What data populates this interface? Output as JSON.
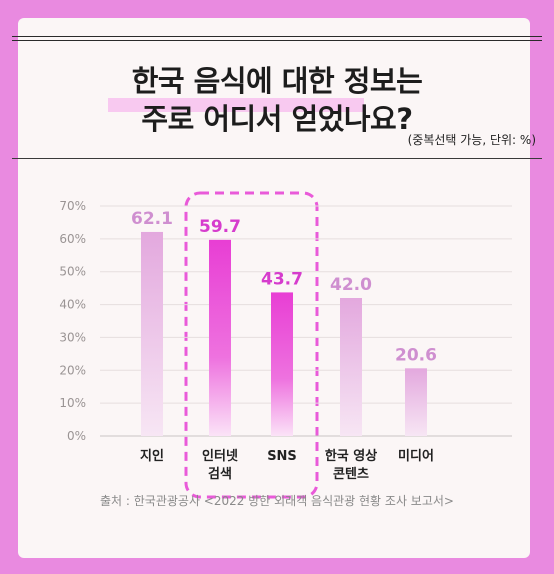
{
  "title_line1": "한국 음식에 대한 정보는",
  "title_line2": "주로 어디서 얻었나요?",
  "unit_note": "(중복선택 가능, 단위: %)",
  "source": "출처 : 한국관광공사 <2022 방한 외래객 음식관광 현황 조사 보고서>",
  "colors": {
    "background": "#e98ae0",
    "bar_light": "#e8b3e2",
    "bar_highlight": "#ea3fd5",
    "label_light": "#cf8fd0",
    "label_highlight": "#d63ccd",
    "dash": "#e95ad9"
  },
  "chart_data": {
    "type": "bar",
    "title": "한국 음식에 대한 정보는 주로 어디서 얻었나요?",
    "xlabel": "",
    "ylabel": "",
    "ylim": [
      0,
      70
    ],
    "yticks": [
      "0%",
      "10%",
      "20%",
      "30%",
      "40%",
      "50%",
      "60%",
      "70%"
    ],
    "categories": [
      [
        "지인"
      ],
      [
        "인터넷",
        "검색"
      ],
      [
        "SNS"
      ],
      [
        "한국 영상",
        "콘텐츠"
      ],
      [
        "미디어"
      ]
    ],
    "values": [
      62.1,
      59.7,
      43.7,
      42.0,
      20.6
    ],
    "value_labels": [
      "62.1",
      "59.7",
      "43.7",
      "42.0",
      "20.6"
    ],
    "highlighted": [
      false,
      true,
      true,
      false,
      false
    ],
    "grid": true
  }
}
